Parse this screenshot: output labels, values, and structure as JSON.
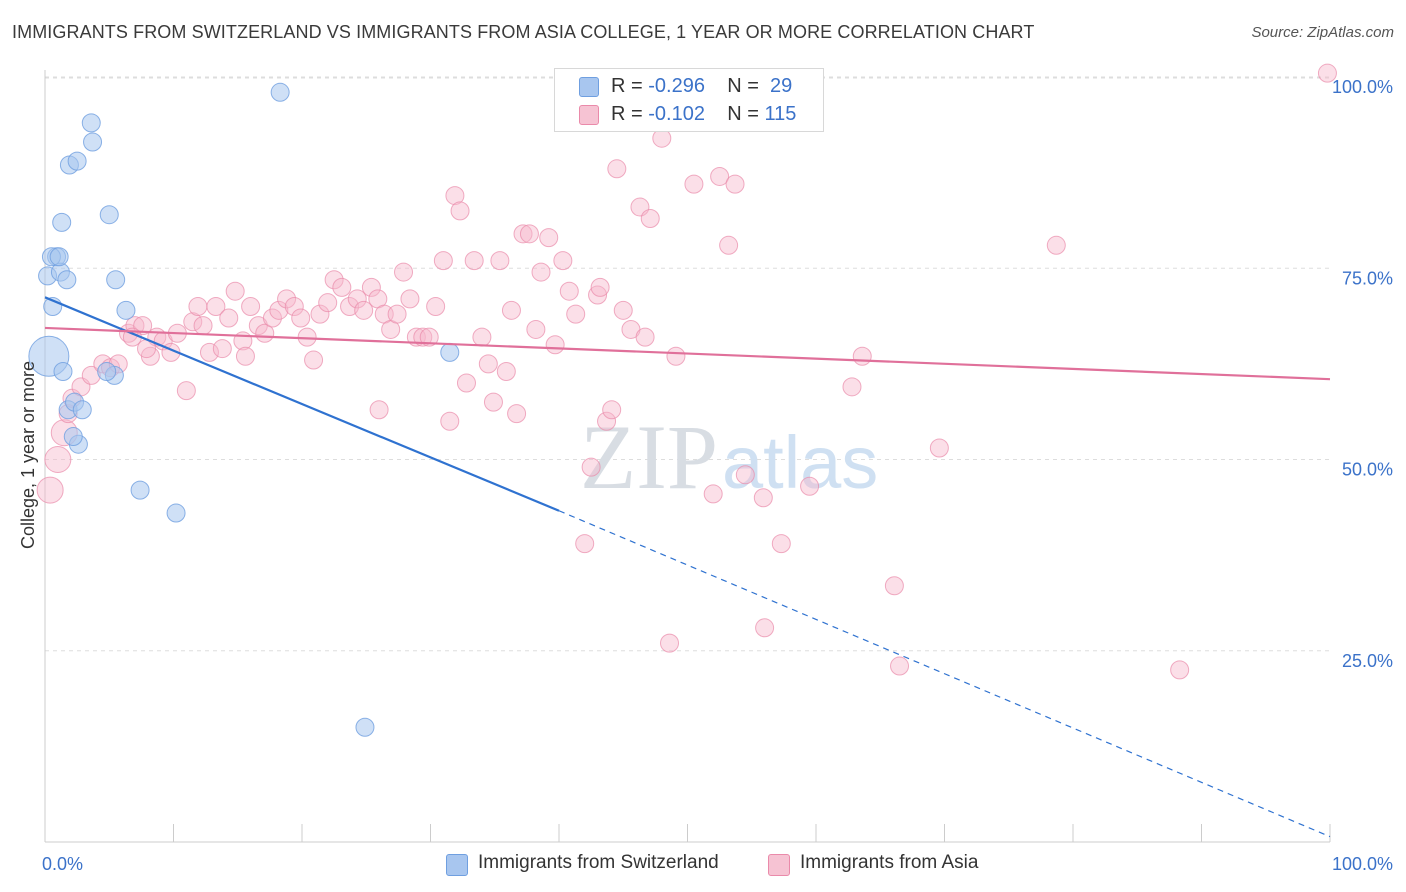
{
  "title": "IMMIGRANTS FROM SWITZERLAND VS IMMIGRANTS FROM ASIA COLLEGE, 1 YEAR OR MORE CORRELATION CHART",
  "source": "Source: ZipAtlas.com",
  "watermark": {
    "zip": "ZIP",
    "atlas": "atlas"
  },
  "colors": {
    "blue_fill": "#a8c6ef",
    "blue_stroke": "#6f9fe0",
    "blue_line": "#2f72d0",
    "pink_fill": "#f6b8cc",
    "pink_stroke": "#ea8aaa",
    "pink_line": "#e0709a",
    "axis_label": "#3b72c9",
    "grid": "#dddddd"
  },
  "legend_top": {
    "rows": [
      {
        "r_label": "R =",
        "r_value": "-0.296",
        "n_label": "N =",
        "n_value": "29"
      },
      {
        "r_label": "R =",
        "r_value": "-0.102",
        "n_label": "N =",
        "n_value": "115"
      }
    ]
  },
  "legend_bottom": [
    "Immigrants from Switzerland",
    "Immigrants from Asia"
  ],
  "chart_data": {
    "type": "scatter",
    "title": "IMMIGRANTS FROM SWITZERLAND VS IMMIGRANTS FROM ASIA COLLEGE, 1 YEAR OR MORE CORRELATION CHART",
    "xlabel": "",
    "ylabel": "College, 1 year or more",
    "xlim": [
      0,
      100
    ],
    "ylim": [
      0,
      102
    ],
    "x_tick_labels": [
      "0.0%",
      "100.0%"
    ],
    "y_ticks": [
      25,
      50,
      75,
      100
    ],
    "y_tick_labels": [
      "25.0%",
      "50.0%",
      "75.0%",
      "100.0%"
    ],
    "grid": true,
    "series": [
      {
        "name": "Immigrants from Switzerland",
        "r": -0.296,
        "n": 29,
        "trend": {
          "x0": 0,
          "y0": 71.2,
          "x1": 40,
          "y1": 43.3,
          "dashed_to_x": 100,
          "dashed_to_y": 0.7
        },
        "points": [
          [
            0.3,
            63.5,
            3
          ],
          [
            0.2,
            74,
            1
          ],
          [
            0.6,
            70,
            1
          ],
          [
            0.9,
            76.5,
            1
          ],
          [
            1.2,
            74.5,
            1
          ],
          [
            1.3,
            81,
            1
          ],
          [
            1.7,
            73.5,
            1
          ],
          [
            1.9,
            88.5,
            1
          ],
          [
            2.5,
            89,
            1
          ],
          [
            3.6,
            94,
            1
          ],
          [
            3.7,
            91.5,
            1
          ],
          [
            5.0,
            82,
            1
          ],
          [
            5.4,
            61,
            1
          ],
          [
            5.5,
            73.5,
            1
          ],
          [
            6.3,
            69.5,
            1
          ],
          [
            1.4,
            61.5,
            1
          ],
          [
            1.8,
            56.5,
            1
          ],
          [
            2.3,
            57.5,
            1
          ],
          [
            2.6,
            52,
            1
          ],
          [
            2.9,
            56.5,
            1
          ],
          [
            2.2,
            53,
            1
          ],
          [
            7.4,
            46,
            1
          ],
          [
            10.2,
            43,
            1
          ],
          [
            18.3,
            98,
            1
          ],
          [
            31.5,
            64,
            1
          ],
          [
            24.9,
            15,
            1
          ],
          [
            0.5,
            76.5,
            1
          ],
          [
            1.1,
            76.5,
            1
          ],
          [
            4.8,
            61.5,
            1
          ]
        ]
      },
      {
        "name": "Immigrants from Asia",
        "r": -0.102,
        "n": 115,
        "trend": {
          "x0": 0,
          "y0": 67.2,
          "x1": 100,
          "y1": 60.5
        },
        "points": [
          [
            0.4,
            46,
            2
          ],
          [
            1.0,
            50,
            2
          ],
          [
            1.5,
            53.5,
            2
          ],
          [
            1.8,
            56,
            1
          ],
          [
            2.1,
            58,
            1
          ],
          [
            2.8,
            59.5,
            1
          ],
          [
            3.6,
            61,
            1
          ],
          [
            4.5,
            62.5,
            1
          ],
          [
            5.1,
            62,
            1
          ],
          [
            5.7,
            62.5,
            1
          ],
          [
            6.5,
            66.5,
            1
          ],
          [
            7.0,
            67.5,
            1
          ],
          [
            7.6,
            67.5,
            1
          ],
          [
            8.2,
            63.5,
            1
          ],
          [
            8.7,
            66,
            1
          ],
          [
            9.2,
            65.5,
            1
          ],
          [
            9.8,
            64,
            1
          ],
          [
            10.3,
            66.5,
            1
          ],
          [
            11.0,
            59,
            1
          ],
          [
            11.5,
            68,
            1
          ],
          [
            11.9,
            70,
            1
          ],
          [
            12.3,
            67.5,
            1
          ],
          [
            12.8,
            64,
            1
          ],
          [
            13.3,
            70,
            1
          ],
          [
            13.8,
            64.5,
            1
          ],
          [
            14.3,
            68.5,
            1
          ],
          [
            14.8,
            72,
            1
          ],
          [
            15.4,
            65.5,
            1
          ],
          [
            16.0,
            70,
            1
          ],
          [
            16.6,
            67.5,
            1
          ],
          [
            17.1,
            66.5,
            1
          ],
          [
            17.7,
            68.5,
            1
          ],
          [
            18.2,
            69.5,
            1
          ],
          [
            18.8,
            71,
            1
          ],
          [
            19.4,
            70,
            1
          ],
          [
            19.9,
            68.5,
            1
          ],
          [
            20.4,
            66,
            1
          ],
          [
            20.9,
            63,
            1
          ],
          [
            21.4,
            69,
            1
          ],
          [
            22.0,
            70.5,
            1
          ],
          [
            22.5,
            73.5,
            1
          ],
          [
            23.1,
            72.5,
            1
          ],
          [
            23.7,
            70,
            1
          ],
          [
            24.3,
            71,
            1
          ],
          [
            24.8,
            69.5,
            1
          ],
          [
            25.4,
            72.5,
            1
          ],
          [
            25.9,
            71,
            1
          ],
          [
            26.4,
            69,
            1
          ],
          [
            26.9,
            67,
            1
          ],
          [
            27.4,
            69,
            1
          ],
          [
            27.9,
            74.5,
            1
          ],
          [
            28.4,
            71,
            1
          ],
          [
            28.9,
            66,
            1
          ],
          [
            29.4,
            66,
            1
          ],
          [
            29.9,
            66,
            1
          ],
          [
            30.4,
            70,
            1
          ],
          [
            31.0,
            76,
            1
          ],
          [
            31.5,
            55,
            1
          ],
          [
            31.9,
            84.5,
            1
          ],
          [
            32.3,
            82.5,
            1
          ],
          [
            32.8,
            60,
            1
          ],
          [
            33.4,
            76,
            1
          ],
          [
            34.0,
            66,
            1
          ],
          [
            34.5,
            62.5,
            1
          ],
          [
            34.9,
            57.5,
            1
          ],
          [
            35.4,
            76,
            1
          ],
          [
            35.9,
            61.5,
            1
          ],
          [
            36.3,
            69.5,
            1
          ],
          [
            36.7,
            56,
            1
          ],
          [
            37.2,
            79.5,
            1
          ],
          [
            37.7,
            79.5,
            1
          ],
          [
            38.2,
            67,
            1
          ],
          [
            38.6,
            74.5,
            1
          ],
          [
            39.2,
            79,
            1
          ],
          [
            39.7,
            65,
            1
          ],
          [
            40.3,
            76,
            1
          ],
          [
            40.8,
            72,
            1
          ],
          [
            41.3,
            69,
            1
          ],
          [
            42.0,
            39,
            1
          ],
          [
            42.5,
            49,
            1
          ],
          [
            43.0,
            71.5,
            1
          ],
          [
            43.2,
            72.5,
            1
          ],
          [
            43.7,
            55,
            1
          ],
          [
            44.1,
            56.5,
            1
          ],
          [
            44.5,
            88,
            1
          ],
          [
            45.0,
            69.5,
            1
          ],
          [
            45.6,
            67,
            1
          ],
          [
            46.3,
            83,
            1
          ],
          [
            46.7,
            66,
            1
          ],
          [
            47.1,
            81.5,
            1
          ],
          [
            48.0,
            92,
            1
          ],
          [
            48.6,
            26,
            1
          ],
          [
            50.5,
            86,
            1
          ],
          [
            52.0,
            45.5,
            1
          ],
          [
            52.5,
            87,
            1
          ],
          [
            53.2,
            78,
            1
          ],
          [
            53.7,
            86,
            1
          ],
          [
            54.5,
            48,
            1
          ],
          [
            55.9,
            45,
            1
          ],
          [
            56.0,
            28,
            1
          ],
          [
            57.3,
            39,
            1
          ],
          [
            59.5,
            46.5,
            1
          ],
          [
            62.8,
            59.5,
            1
          ],
          [
            63.6,
            63.5,
            1
          ],
          [
            66.1,
            33.5,
            1
          ],
          [
            66.5,
            23,
            1
          ],
          [
            69.6,
            51.5,
            1
          ],
          [
            78.7,
            78,
            1
          ],
          [
            88.3,
            22.5,
            1
          ],
          [
            99.8,
            100.5,
            1
          ],
          [
            6.8,
            66,
            1
          ],
          [
            7.9,
            64.5,
            1
          ],
          [
            15.6,
            63.5,
            1
          ],
          [
            26.0,
            56.5,
            1
          ],
          [
            49.1,
            63.5,
            1
          ]
        ]
      }
    ]
  }
}
